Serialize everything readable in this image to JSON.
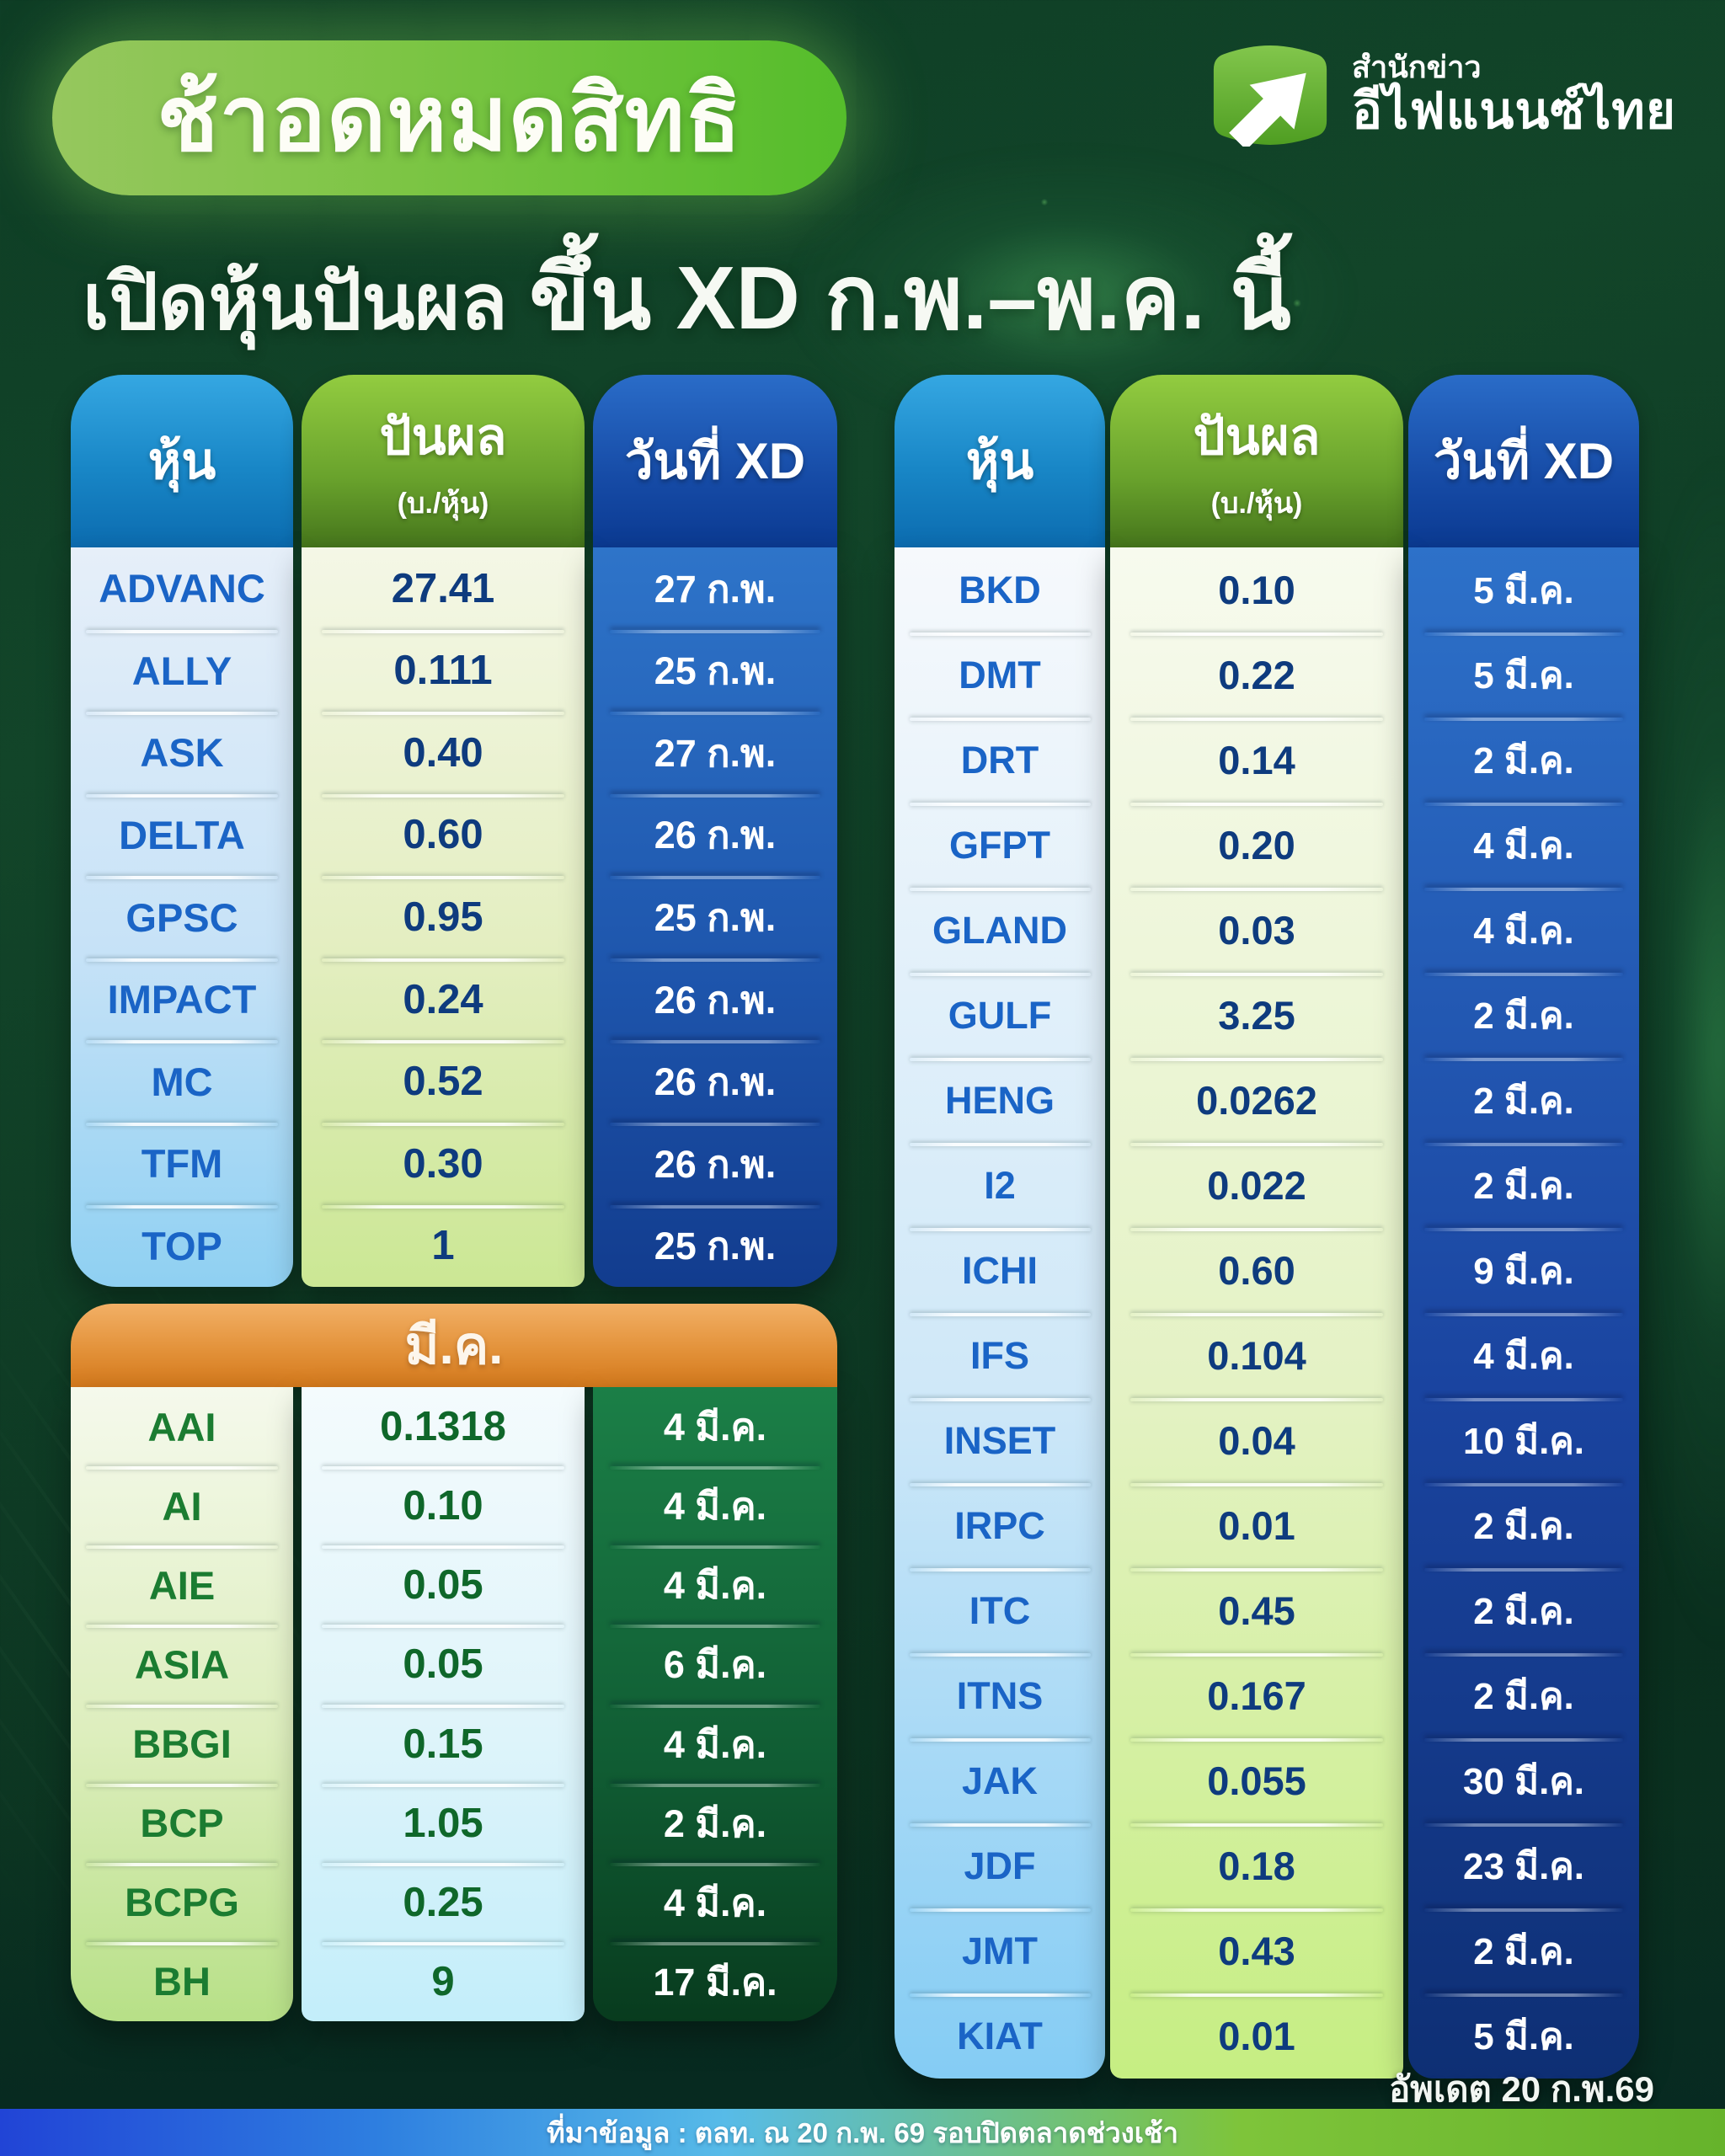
{
  "badge": {
    "text": "ช้าอดหมดสิทธิ"
  },
  "logo": {
    "icon": "growth-arrow-icon",
    "line1": "สำนักข่าว",
    "line2": "อีไฟแนนซ์ไทย"
  },
  "title": {
    "part1": "เปิดหุ้นปันผล",
    "part2": "ขึ้น XD ก.พ.–พ.ค. นี้"
  },
  "column_headers": {
    "stock": "หุ้น",
    "dividend": "ปันผล",
    "dividend_unit": "(บ./หุ้น)",
    "xd": "วันที่ XD"
  },
  "feb_table": {
    "rows": [
      {
        "stock": "ADVANC",
        "dividend": "27.41",
        "xd": "27 ก.พ."
      },
      {
        "stock": "ALLY",
        "dividend": "0.111",
        "xd": "25 ก.พ."
      },
      {
        "stock": "ASK",
        "dividend": "0.40",
        "xd": "27 ก.พ."
      },
      {
        "stock": "DELTA",
        "dividend": "0.60",
        "xd": "26 ก.พ."
      },
      {
        "stock": "GPSC",
        "dividend": "0.95",
        "xd": "25 ก.พ."
      },
      {
        "stock": "IMPACT",
        "dividend": "0.24",
        "xd": "26 ก.พ."
      },
      {
        "stock": "MC",
        "dividend": "0.52",
        "xd": "26 ก.พ."
      },
      {
        "stock": "TFM",
        "dividend": "0.30",
        "xd": "26 ก.พ."
      },
      {
        "stock": "TOP",
        "dividend": "1",
        "xd": "25 ก.พ."
      }
    ]
  },
  "march_table": {
    "header": "มี.ค.",
    "rows": [
      {
        "stock": "AAI",
        "dividend": "0.1318",
        "xd": "4 มี.ค."
      },
      {
        "stock": "AI",
        "dividend": "0.10",
        "xd": "4 มี.ค."
      },
      {
        "stock": "AIE",
        "dividend": "0.05",
        "xd": "4 มี.ค."
      },
      {
        "stock": "ASIA",
        "dividend": "0.05",
        "xd": "6 มี.ค."
      },
      {
        "stock": "BBGI",
        "dividend": "0.15",
        "xd": "4 มี.ค."
      },
      {
        "stock": "BCP",
        "dividend": "1.05",
        "xd": "2 มี.ค."
      },
      {
        "stock": "BCPG",
        "dividend": "0.25",
        "xd": "4 มี.ค."
      },
      {
        "stock": "BH",
        "dividend": "9",
        "xd": "17 มี.ค."
      }
    ]
  },
  "right_table": {
    "rows": [
      {
        "stock": "BKD",
        "dividend": "0.10",
        "xd": "5 มี.ค."
      },
      {
        "stock": "DMT",
        "dividend": "0.22",
        "xd": "5 มี.ค."
      },
      {
        "stock": "DRT",
        "dividend": "0.14",
        "xd": "2 มี.ค."
      },
      {
        "stock": "GFPT",
        "dividend": "0.20",
        "xd": "4 มี.ค."
      },
      {
        "stock": "GLAND",
        "dividend": "0.03",
        "xd": "4 มี.ค."
      },
      {
        "stock": "GULF",
        "dividend": "3.25",
        "xd": "2 มี.ค."
      },
      {
        "stock": "HENG",
        "dividend": "0.0262",
        "xd": "2 มี.ค."
      },
      {
        "stock": "I2",
        "dividend": "0.022",
        "xd": "2 มี.ค."
      },
      {
        "stock": "ICHI",
        "dividend": "0.60",
        "xd": "9 มี.ค."
      },
      {
        "stock": "IFS",
        "dividend": "0.104",
        "xd": "4 มี.ค."
      },
      {
        "stock": "INSET",
        "dividend": "0.04",
        "xd": "10 มี.ค."
      },
      {
        "stock": "IRPC",
        "dividend": "0.01",
        "xd": "2 มี.ค."
      },
      {
        "stock": "ITC",
        "dividend": "0.45",
        "xd": "2 มี.ค."
      },
      {
        "stock": "ITNS",
        "dividend": "0.167",
        "xd": "2 มี.ค."
      },
      {
        "stock": "JAK",
        "dividend": "0.055",
        "xd": "30 มี.ค."
      },
      {
        "stock": "JDF",
        "dividend": "0.18",
        "xd": "23 มี.ค."
      },
      {
        "stock": "JMT",
        "dividend": "0.43",
        "xd": "2 มี.ค."
      },
      {
        "stock": "KIAT",
        "dividend": "0.01",
        "xd": "5 มี.ค."
      }
    ]
  },
  "footer": {
    "updated": "อัพเดต 20 ก.พ.69",
    "source": "ที่มาข้อมูล : ตลท. ณ 20 ก.พ. 69 รอบปิดตลาดช่วงเช้า"
  },
  "colors": {
    "background": "#0e3a24",
    "badge_green_start": "#96c75e",
    "badge_green_end": "#55bd2b",
    "header_stock_blue": "#1886c6",
    "header_dividend_green": "#69a22c",
    "header_xd_blue": "#164ba6",
    "march_orange": "#e3923a",
    "xd_feb_blue": "#2e74c9",
    "xd_right_blue_dark": "#0e2f74",
    "xd_march_green": "#105c33",
    "ticker_blue": "#1a64c6",
    "ticker_green": "#1b7c31",
    "value_navy": "#0e3b7e",
    "value_green": "#0f672a",
    "source_bar_gradient": [
      "#2144d6",
      "#2e7fe0",
      "#57bbe8",
      "#7ec43a",
      "#66b32b"
    ]
  },
  "chart_data": [
    {
      "type": "table",
      "title": "หุ้นขึ้น XD ก.พ.",
      "columns": [
        "หุ้น",
        "ปันผล (บ./หุ้น)",
        "วันที่ XD"
      ],
      "rows": [
        [
          "ADVANC",
          27.41,
          "27 ก.พ."
        ],
        [
          "ALLY",
          0.111,
          "25 ก.พ."
        ],
        [
          "ASK",
          0.4,
          "27 ก.พ."
        ],
        [
          "DELTA",
          0.6,
          "26 ก.พ."
        ],
        [
          "GPSC",
          0.95,
          "25 ก.พ."
        ],
        [
          "IMPACT",
          0.24,
          "26 ก.พ."
        ],
        [
          "MC",
          0.52,
          "26 ก.พ."
        ],
        [
          "TFM",
          0.3,
          "26 ก.พ."
        ],
        [
          "TOP",
          1,
          "25 ก.พ."
        ]
      ]
    },
    {
      "type": "table",
      "title": "มี.ค.",
      "columns": [
        "หุ้น",
        "ปันผล (บ./หุ้น)",
        "วันที่ XD"
      ],
      "rows": [
        [
          "AAI",
          0.1318,
          "4 มี.ค."
        ],
        [
          "AI",
          0.1,
          "4 มี.ค."
        ],
        [
          "AIE",
          0.05,
          "4 มี.ค."
        ],
        [
          "ASIA",
          0.05,
          "6 มี.ค."
        ],
        [
          "BBGI",
          0.15,
          "4 มี.ค."
        ],
        [
          "BCP",
          1.05,
          "2 มี.ค."
        ],
        [
          "BCPG",
          0.25,
          "4 มี.ค."
        ],
        [
          "BH",
          9,
          "17 มี.ค."
        ]
      ]
    },
    {
      "type": "table",
      "title": "หุ้นขึ้น XD (คอลัมน์ขวา)",
      "columns": [
        "หุ้น",
        "ปันผล (บ./หุ้น)",
        "วันที่ XD"
      ],
      "rows": [
        [
          "BKD",
          0.1,
          "5 มี.ค."
        ],
        [
          "DMT",
          0.22,
          "5 มี.ค."
        ],
        [
          "DRT",
          0.14,
          "2 มี.ค."
        ],
        [
          "GFPT",
          0.2,
          "4 มี.ค."
        ],
        [
          "GLAND",
          0.03,
          "4 มี.ค."
        ],
        [
          "GULF",
          3.25,
          "2 มี.ค."
        ],
        [
          "HENG",
          0.0262,
          "2 มี.ค."
        ],
        [
          "I2",
          0.022,
          "2 มี.ค."
        ],
        [
          "ICHI",
          0.6,
          "9 มี.ค."
        ],
        [
          "IFS",
          0.104,
          "4 มี.ค."
        ],
        [
          "INSET",
          0.04,
          "10 มี.ค."
        ],
        [
          "IRPC",
          0.01,
          "2 มี.ค."
        ],
        [
          "ITC",
          0.45,
          "2 มี.ค."
        ],
        [
          "ITNS",
          0.167,
          "2 มี.ค."
        ],
        [
          "JAK",
          0.055,
          "30 มี.ค."
        ],
        [
          "JDF",
          0.18,
          "23 มี.ค."
        ],
        [
          "JMT",
          0.43,
          "2 มี.ค."
        ],
        [
          "KIAT",
          0.01,
          "5 มี.ค."
        ]
      ]
    }
  ]
}
